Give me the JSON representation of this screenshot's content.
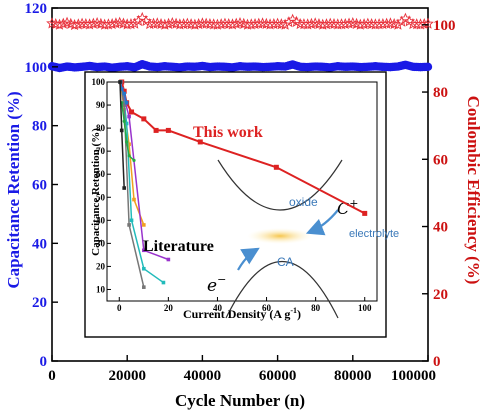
{
  "chart_data": [
    {
      "type": "scatter",
      "xlabel": "Cycle Number (n)",
      "ylabel_left": "Capacitance Retention (%)",
      "ylabel_right": "Coulombic Efficiency (%)",
      "xlim": [
        0,
        100000
      ],
      "ylim_left": [
        0,
        120
      ],
      "ylim_right": [
        0,
        105
      ],
      "x_ticks": [
        "0",
        "20000",
        "40000",
        "60000",
        "80000",
        "100000"
      ],
      "y_ticks_left": [
        "0",
        "20",
        "40",
        "60",
        "80",
        "100",
        "120"
      ],
      "y_ticks_right": [
        "0",
        "20",
        "40",
        "60",
        "80",
        "100"
      ],
      "series": [
        {
          "axis": "left",
          "color": "#1a1ae6",
          "marker": "circle",
          "x": [
            0,
            2000,
            4000,
            6000,
            8000,
            10000,
            12000,
            14000,
            16000,
            18000,
            20000,
            22000,
            24000,
            26000,
            28000,
            30000,
            32000,
            34000,
            36000,
            38000,
            40000,
            42000,
            44000,
            46000,
            48000,
            50000,
            52000,
            54000,
            56000,
            58000,
            60000,
            62000,
            64000,
            66000,
            68000,
            70000,
            72000,
            74000,
            76000,
            78000,
            80000,
            82000,
            84000,
            86000,
            88000,
            90000,
            92000,
            94000,
            96000,
            98000,
            100000
          ],
          "y": [
            100.2,
            99.6,
            100.1,
            99.8,
            100.0,
            100.3,
            99.9,
            100.1,
            99.7,
            100.0,
            100.2,
            99.8,
            100.9,
            100.1,
            99.9,
            100.2,
            100.0,
            99.8,
            100.1,
            100.0,
            100.3,
            99.9,
            100.1,
            100.0,
            99.8,
            100.2,
            100.0,
            100.1,
            99.9,
            100.0,
            100.2,
            100.1,
            100.8,
            100.0,
            99.9,
            100.1,
            100.0,
            99.8,
            100.2,
            100.0,
            100.1,
            99.9,
            100.0,
            100.2,
            100.0,
            99.9,
            100.1,
            100.7,
            100.0,
            99.9,
            100.0
          ]
        },
        {
          "axis": "right",
          "color": "#e8323c",
          "marker": "star",
          "x": [
            0,
            2000,
            4000,
            6000,
            8000,
            10000,
            12000,
            14000,
            16000,
            18000,
            20000,
            22000,
            24000,
            26000,
            28000,
            30000,
            32000,
            34000,
            36000,
            38000,
            40000,
            42000,
            44000,
            46000,
            48000,
            50000,
            52000,
            54000,
            56000,
            58000,
            60000,
            62000,
            64000,
            66000,
            68000,
            70000,
            72000,
            74000,
            76000,
            78000,
            80000,
            82000,
            84000,
            86000,
            88000,
            90000,
            92000,
            94000,
            96000,
            98000,
            100000
          ],
          "y": [
            100.4,
            100.0,
            100.6,
            99.9,
            100.3,
            100.1,
            100.5,
            100.0,
            100.2,
            100.6,
            100.1,
            100.3,
            102.0,
            100.2,
            100.4,
            100.0,
            100.5,
            100.1,
            100.3,
            100.0,
            100.4,
            100.2,
            100.0,
            100.3,
            100.1,
            100.5,
            100.0,
            100.2,
            100.4,
            100.1,
            100.3,
            100.0,
            101.5,
            100.2,
            100.1,
            100.4,
            100.0,
            100.3,
            100.1,
            100.2,
            100.5,
            100.0,
            100.3,
            100.1,
            100.2,
            100.4,
            100.0,
            101.8,
            100.2,
            100.1,
            100.3
          ]
        }
      ]
    },
    {
      "type": "line",
      "inset": true,
      "xlabel": "Current Density (A g",
      "xlabel_sup": "-1",
      "xlabel_end": ")",
      "ylabel": "Capacitance Retention (%)",
      "xlim": [
        -5,
        105
      ],
      "ylim": [
        5,
        100
      ],
      "x_ticks": [
        "0",
        "20",
        "40",
        "60",
        "80",
        "100"
      ],
      "y_ticks": [
        "10",
        "20",
        "30",
        "40",
        "50",
        "60",
        "70",
        "80",
        "90",
        "100"
      ],
      "series": [
        {
          "name": "This work",
          "color": "#dd2222",
          "marker": "square",
          "x": [
            1,
            2,
            3,
            5,
            10,
            15,
            20,
            33,
            64,
            100
          ],
          "y": [
            100,
            96,
            91,
            87,
            84,
            79,
            79,
            74,
            63,
            43
          ]
        },
        {
          "color": "#f0a020",
          "marker": "square",
          "x": [
            0.5,
            2,
            4,
            6,
            10
          ],
          "y": [
            100,
            88,
            73,
            49,
            38
          ]
        },
        {
          "color": "#9933cc",
          "marker": "square",
          "x": [
            0.5,
            2,
            4,
            10,
            20
          ],
          "y": [
            100,
            93,
            85,
            27,
            23
          ]
        },
        {
          "color": "#22bbbb",
          "marker": "square",
          "x": [
            0.5,
            2,
            3,
            5,
            10,
            18
          ],
          "y": [
            100,
            91,
            82,
            40,
            19,
            13
          ]
        },
        {
          "color": "#777777",
          "marker": "square",
          "x": [
            0.5,
            1,
            2,
            4,
            10
          ],
          "y": [
            100,
            97,
            90,
            38,
            11
          ]
        },
        {
          "color": "#2277cc",
          "marker": "square",
          "x": [
            0.5,
            1,
            2,
            3
          ],
          "y": [
            100,
            97,
            95,
            91
          ]
        },
        {
          "color": "#22aa44",
          "marker": "dot",
          "x": [
            1,
            2,
            3,
            4,
            6
          ],
          "y": [
            91,
            83,
            74,
            68,
            66
          ]
        },
        {
          "color": "#222222",
          "marker": "square",
          "x": [
            0.3,
            1,
            2
          ],
          "y": [
            100,
            79,
            54
          ]
        }
      ],
      "annotations": {
        "this_work": "This work",
        "literature": "Literature"
      }
    }
  ],
  "schematic": {
    "oxide": "oxide",
    "electrolyte": "electrolyte",
    "ca": "CA",
    "cation": "C",
    "cation_sup": "+",
    "electron": "e",
    "electron_sup": "−"
  }
}
